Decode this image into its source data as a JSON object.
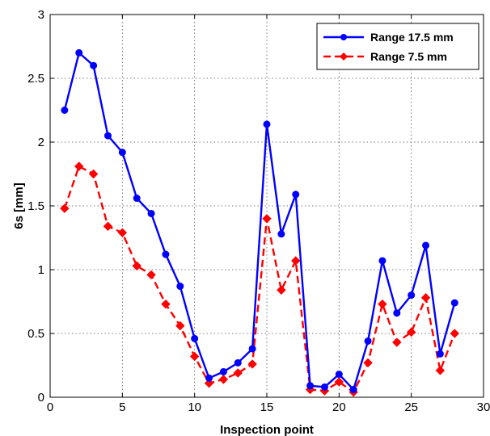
{
  "chart_data": {
    "type": "line",
    "xlabel": "Inspection point",
    "ylabel": "6s [mm]",
    "xlim": [
      0,
      30
    ],
    "ylim": [
      0,
      3
    ],
    "xticks": [
      0,
      5,
      10,
      15,
      20,
      25,
      30
    ],
    "yticks": [
      0,
      0.5,
      1,
      1.5,
      2,
      2.5,
      3
    ],
    "xtick_labels": [
      "0",
      "5",
      "10",
      "15",
      "20",
      "25",
      "30"
    ],
    "ytick_labels": [
      "0",
      "0.5",
      "1",
      "1.5",
      "2",
      "2.5",
      "3"
    ],
    "grid": true,
    "legend_position": "top-right",
    "x": [
      1,
      2,
      3,
      4,
      5,
      6,
      7,
      8,
      9,
      10,
      11,
      12,
      13,
      14,
      15,
      16,
      17,
      18,
      19,
      20,
      21,
      22,
      23,
      24,
      25,
      26,
      27,
      28
    ],
    "series": [
      {
        "name": "Range 17.5 mm",
        "color": "#0000ff",
        "line_style": "solid",
        "marker": "circle",
        "values": [
          2.25,
          2.7,
          2.6,
          2.05,
          1.92,
          1.56,
          1.44,
          1.12,
          0.87,
          0.46,
          0.15,
          0.2,
          0.27,
          0.38,
          2.14,
          1.28,
          1.59,
          0.09,
          0.08,
          0.18,
          0.06,
          0.44,
          1.07,
          0.66,
          0.8,
          1.19,
          0.34,
          0.74
        ]
      },
      {
        "name": "Range 7.5 mm",
        "color": "#ff0000",
        "line_style": "dashed",
        "marker": "diamond",
        "values": [
          1.48,
          1.81,
          1.75,
          1.34,
          1.29,
          1.03,
          0.96,
          0.73,
          0.56,
          0.32,
          0.11,
          0.14,
          0.19,
          0.26,
          1.4,
          0.84,
          1.07,
          0.06,
          0.05,
          0.12,
          0.04,
          0.27,
          0.73,
          0.43,
          0.51,
          0.78,
          0.21,
          0.5
        ]
      }
    ]
  }
}
